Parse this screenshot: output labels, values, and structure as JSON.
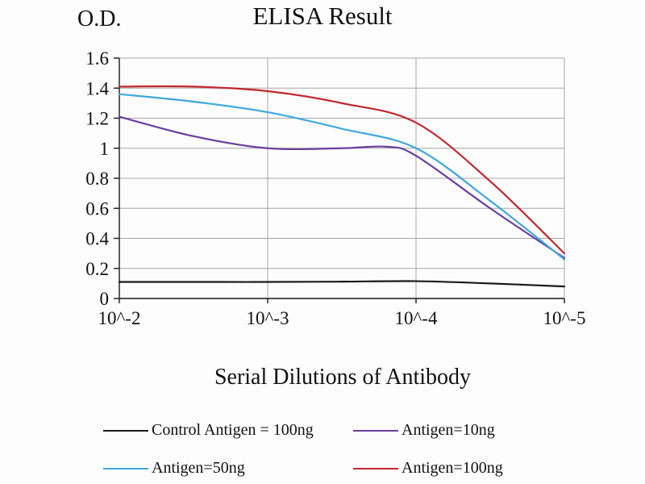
{
  "page": {
    "title": "ELISA Result",
    "y_axis_title": "O.D.",
    "x_axis_title": "Serial Dilutions of Antibody"
  },
  "chart_data": {
    "type": "line",
    "title": "ELISA Result",
    "ylabel": "O.D.",
    "xlabel": "Serial Dilutions of Antibody",
    "grid": true,
    "legend_position": "bottom",
    "xlim": [
      2,
      5
    ],
    "ylim": [
      0,
      1.6
    ],
    "x_tick_labels": [
      "10^-2",
      "10^-3",
      "10^-4",
      "10^-5"
    ],
    "x_tick_exponents": [
      2,
      3,
      4,
      5
    ],
    "y_ticks": [
      0,
      0.2,
      0.4,
      0.6,
      0.8,
      1,
      1.2,
      1.4,
      1.6
    ],
    "y_tick_labels": [
      "0",
      "0.2",
      "0.4",
      "0.6",
      "0.8",
      "1",
      "1.2",
      "1.4",
      "1.6"
    ],
    "grid_color": "#a6a6a6",
    "axis_color": "#1a1a1a",
    "series": [
      {
        "name": "Control Antigen = 100ng",
        "color": "#1a1a1a",
        "x": [
          2,
          2.5,
          3,
          3.5,
          4,
          4.5,
          5
        ],
        "values": [
          0.11,
          0.11,
          0.11,
          0.112,
          0.115,
          0.1,
          0.08
        ]
      },
      {
        "name": "Antigen=10ng",
        "color": "#6b3fa0",
        "x": [
          2,
          2.5,
          3,
          3.5,
          3.8,
          4,
          4.5,
          5
        ],
        "values": [
          1.21,
          1.08,
          1.0,
          1.0,
          1.01,
          0.95,
          0.6,
          0.27
        ]
      },
      {
        "name": "Antigen=50ng",
        "color": "#3fa9dc",
        "x": [
          2,
          2.5,
          3,
          3.5,
          4,
          4.5,
          5
        ],
        "values": [
          1.36,
          1.31,
          1.24,
          1.13,
          1.0,
          0.65,
          0.26
        ]
      },
      {
        "name": "Antigen=100ng",
        "color": "#c1272d",
        "x": [
          2,
          2.5,
          3,
          3.5,
          4,
          4.5,
          5
        ],
        "values": [
          1.41,
          1.41,
          1.38,
          1.3,
          1.17,
          0.78,
          0.3
        ]
      }
    ]
  }
}
